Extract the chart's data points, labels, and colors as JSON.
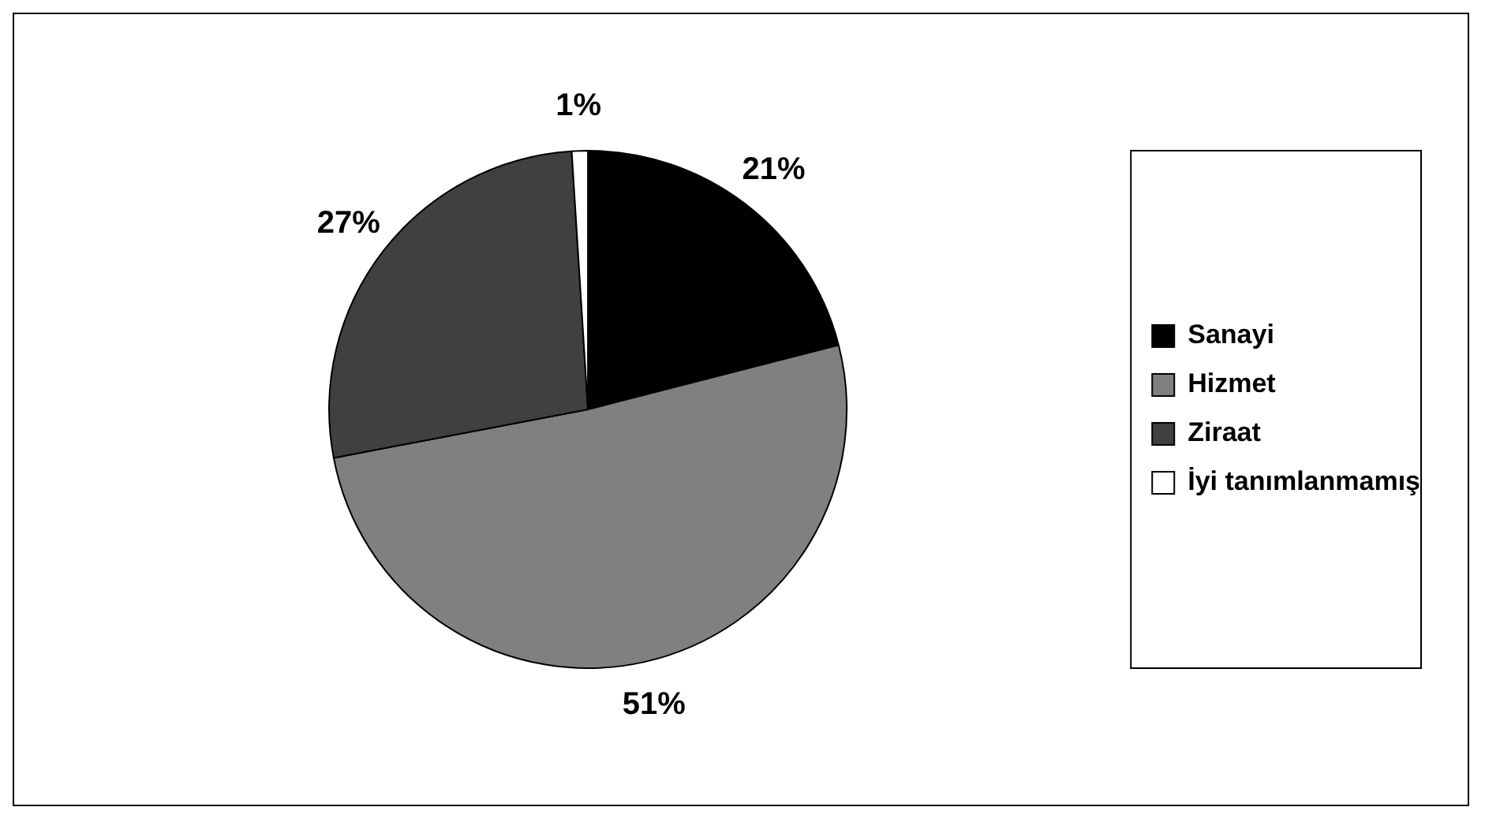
{
  "chart_data": {
    "type": "pie",
    "categories": [
      "Sanayi",
      "Hizmet",
      "Ziraat",
      "İyi tanımlanmamış"
    ],
    "values": [
      21,
      51,
      27,
      1
    ],
    "colors": [
      "#000000",
      "#808080",
      "#404040",
      "#ffffff"
    ],
    "value_labels": [
      "21%",
      "51%",
      "27%",
      "1%"
    ],
    "legend": "right"
  }
}
